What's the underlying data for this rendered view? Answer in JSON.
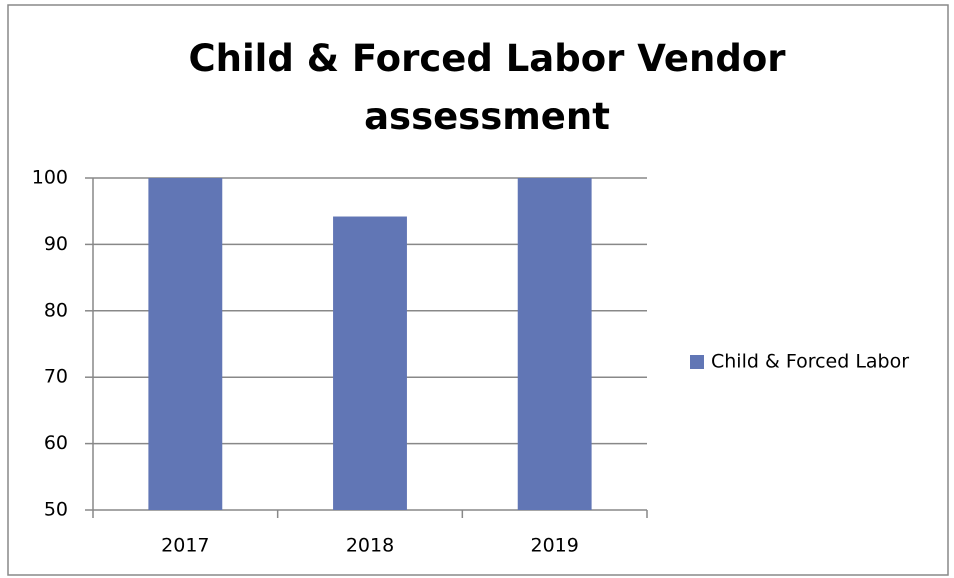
{
  "chart_data": {
    "type": "bar",
    "title": "Child & Forced Labor Vendor assessment",
    "categories": [
      "2017",
      "2018",
      "2019"
    ],
    "series": [
      {
        "name": "Child & Forced Labor",
        "color": "#6176b5",
        "values": [
          100,
          94.2,
          100
        ]
      }
    ],
    "ylim": [
      50,
      100
    ],
    "yticks": [
      50,
      60,
      70,
      80,
      90,
      100
    ],
    "grid": true,
    "legend": "right"
  }
}
